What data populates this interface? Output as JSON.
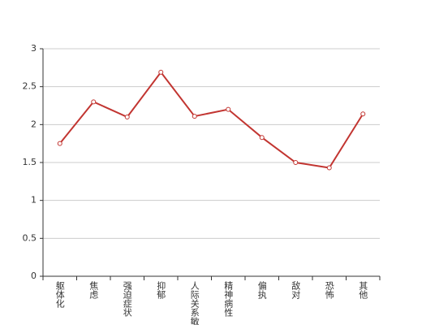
{
  "chart_data": {
    "type": "line",
    "categories": [
      "躯体化",
      "焦虑",
      "强迫症状",
      "抑郁",
      "人际关系敏感",
      "精神病性",
      "偏执",
      "敌对",
      "恐怖",
      "其他"
    ],
    "series": [
      {
        "color": "#c23531",
        "values": [
          1.75,
          2.3,
          2.1,
          2.69,
          2.11,
          2.2,
          1.83,
          1.5,
          1.43,
          2.14
        ]
      }
    ],
    "ylim": [
      0,
      3
    ],
    "yticks": [
      0,
      0.5,
      1,
      1.5,
      2,
      2.5,
      3
    ],
    "grid": true
  }
}
